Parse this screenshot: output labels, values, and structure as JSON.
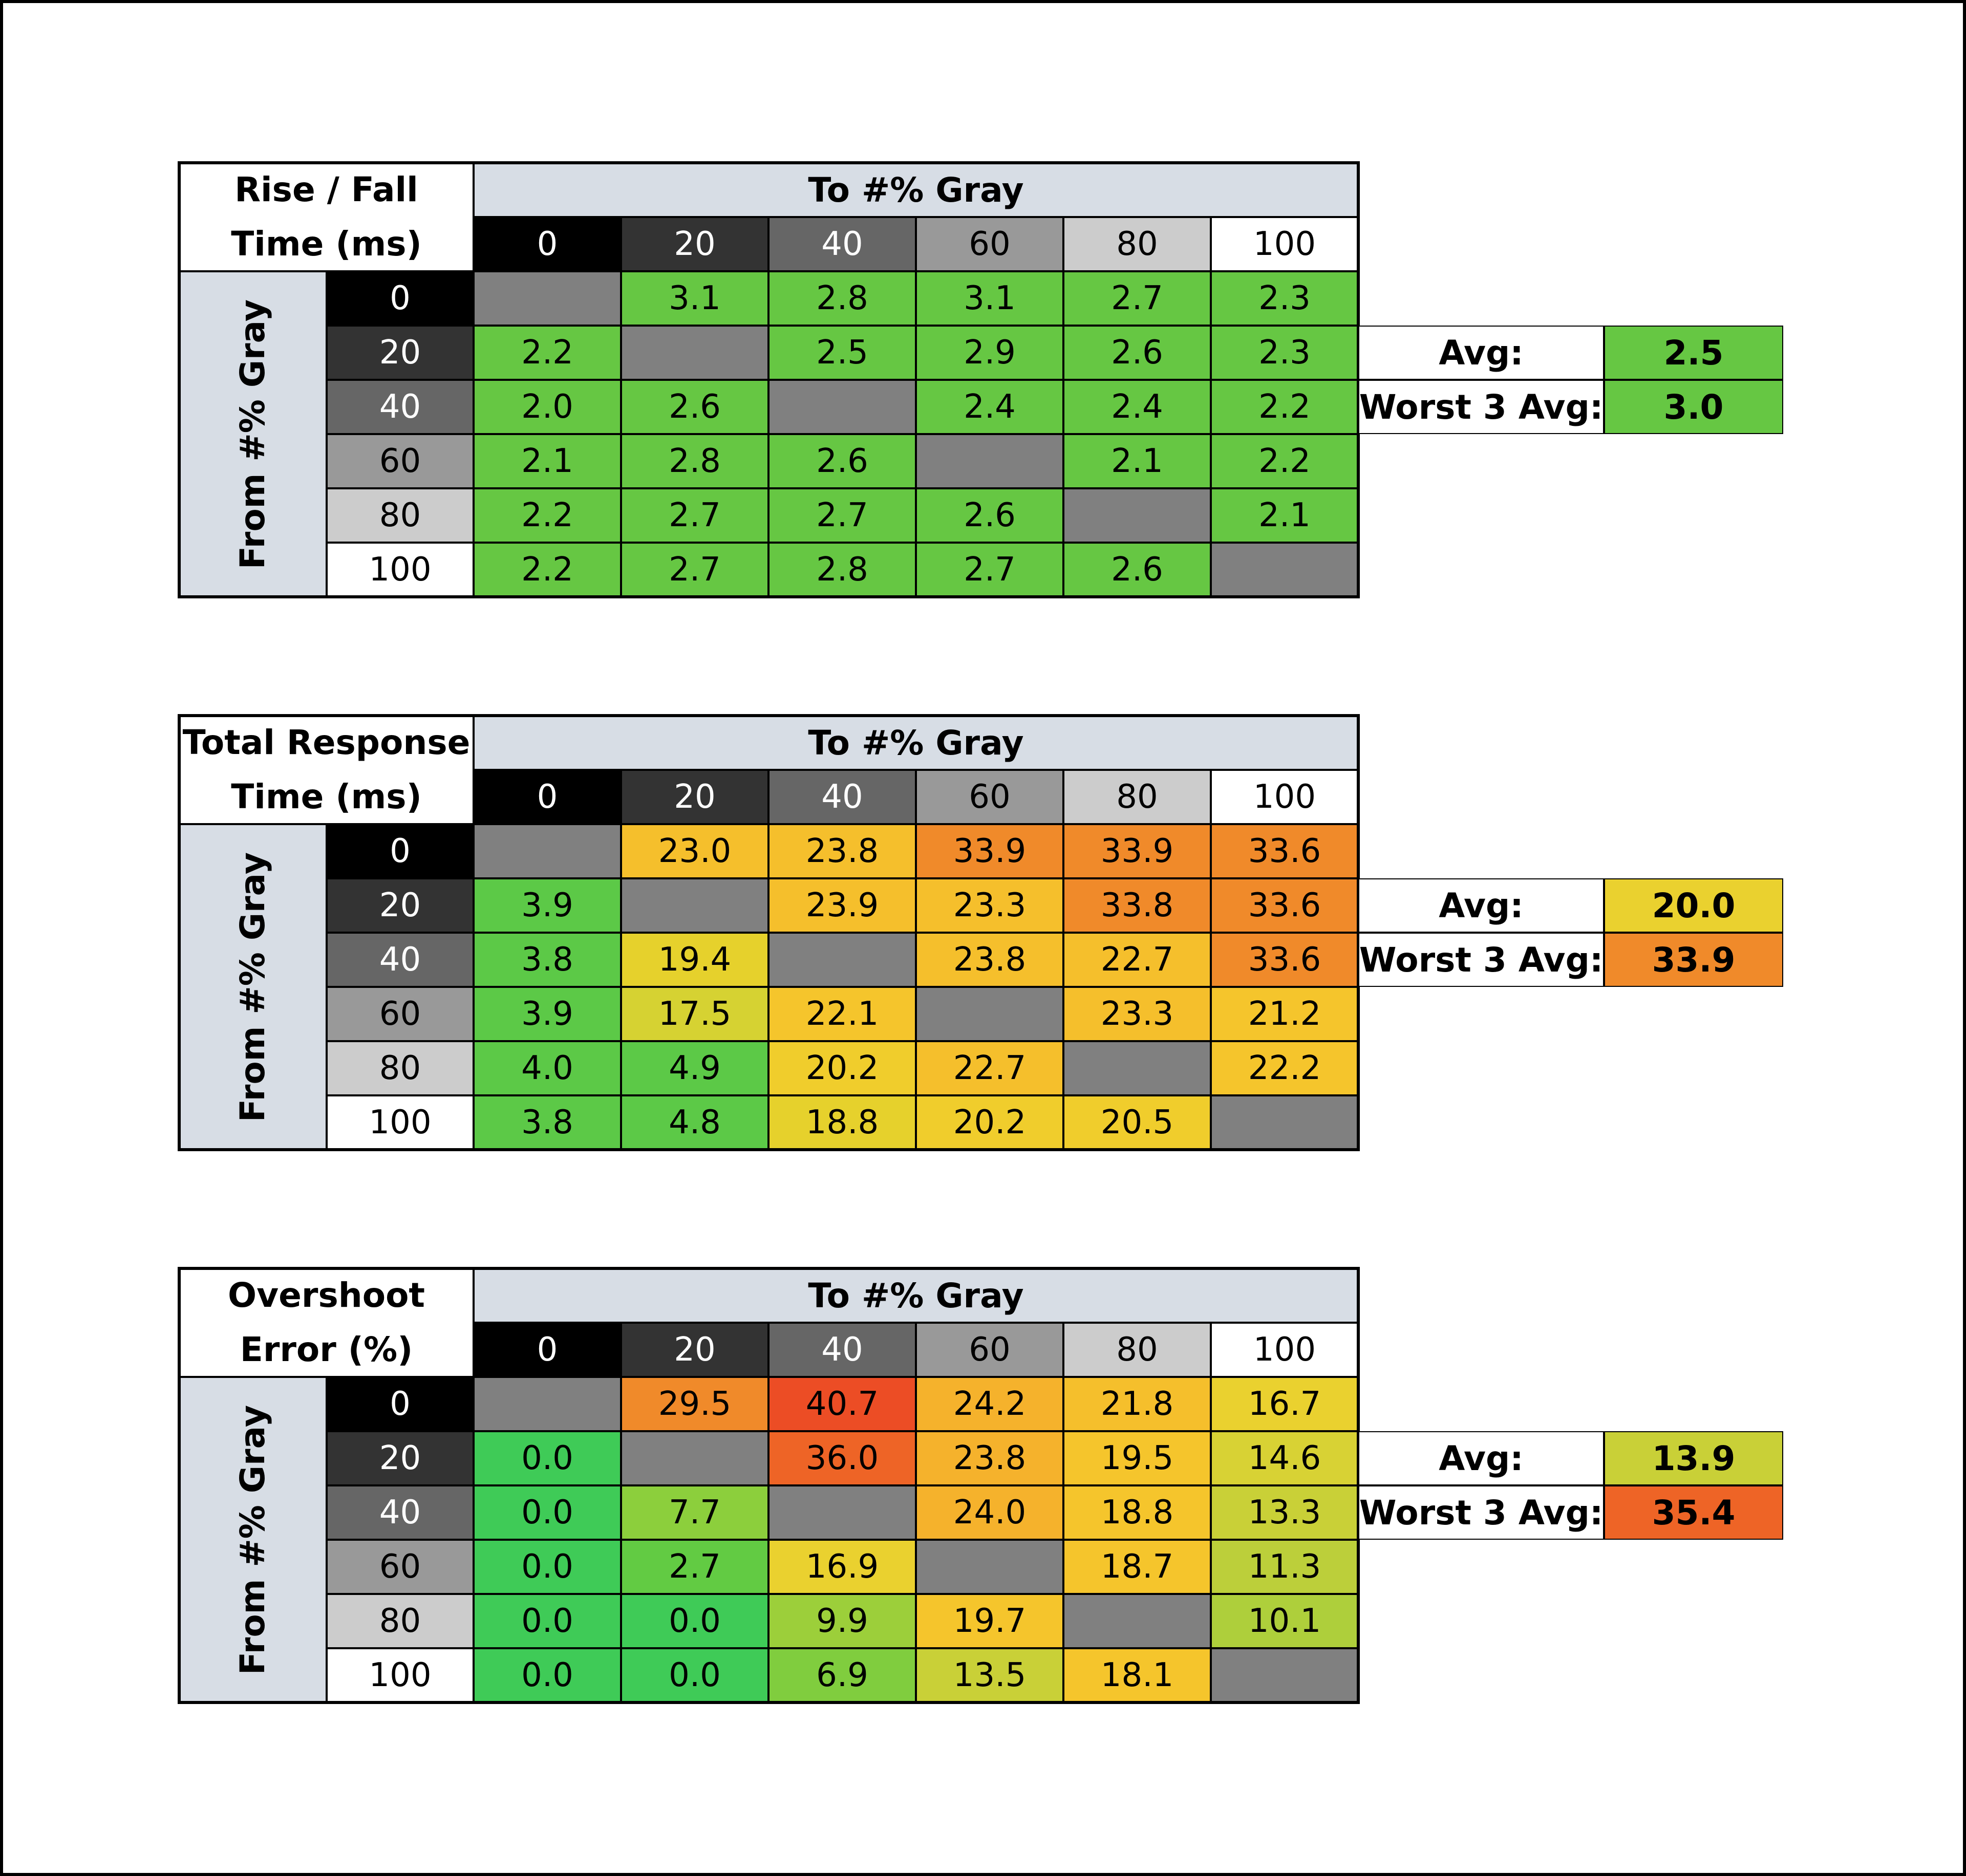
{
  "levels": [
    "0",
    "20",
    "40",
    "60",
    "80",
    "100"
  ],
  "level_colors": [
    "#000000",
    "#333333",
    "#666666",
    "#999999",
    "#cccccc",
    "#ffffff"
  ],
  "level_text_colors": [
    "#ffffff",
    "#ffffff",
    "#ffffff",
    "#000000",
    "#000000",
    "#000000"
  ],
  "na_color": "#808080",
  "col_header": "To #% Gray",
  "row_header": "From #% Gray",
  "avg_label": "Avg:",
  "worst_label": "Worst 3 Avg:",
  "chart_data": [
    {
      "type": "heatmap",
      "title_lines": [
        "Rise / Fall",
        "Time (ms)"
      ],
      "xlabel": "To #% Gray",
      "ylabel": "From #% Gray",
      "x": [
        "0",
        "20",
        "40",
        "60",
        "80",
        "100"
      ],
      "y": [
        "0",
        "20",
        "40",
        "60",
        "80",
        "100"
      ],
      "values": [
        [
          null,
          3.1,
          2.8,
          3.1,
          2.7,
          2.3
        ],
        [
          2.2,
          null,
          2.5,
          2.9,
          2.6,
          2.3
        ],
        [
          2.0,
          2.6,
          null,
          2.4,
          2.4,
          2.2
        ],
        [
          2.1,
          2.8,
          2.6,
          null,
          2.1,
          2.2
        ],
        [
          2.2,
          2.7,
          2.7,
          2.6,
          null,
          2.1
        ],
        [
          2.2,
          2.7,
          2.8,
          2.7,
          2.6,
          null
        ]
      ],
      "colors": [
        [
          null,
          "#66c743",
          "#66c743",
          "#66c743",
          "#66c743",
          "#66c743"
        ],
        [
          "#66c743",
          null,
          "#66c743",
          "#66c743",
          "#66c743",
          "#66c743"
        ],
        [
          "#66c743",
          "#66c743",
          null,
          "#66c743",
          "#66c743",
          "#66c743"
        ],
        [
          "#66c743",
          "#66c743",
          "#66c743",
          null,
          "#66c743",
          "#66c743"
        ],
        [
          "#66c743",
          "#66c743",
          "#66c743",
          "#66c743",
          null,
          "#66c743"
        ],
        [
          "#66c743",
          "#66c743",
          "#66c743",
          "#66c743",
          "#66c743",
          null
        ]
      ],
      "avg": "2.5",
      "avg_color": "#66c743",
      "worst3_avg": "3.0",
      "worst3_color": "#66c743"
    },
    {
      "type": "heatmap",
      "title_lines": [
        "Total Response",
        "Time (ms)"
      ],
      "xlabel": "To #% Gray",
      "ylabel": "From #% Gray",
      "x": [
        "0",
        "20",
        "40",
        "60",
        "80",
        "100"
      ],
      "y": [
        "0",
        "20",
        "40",
        "60",
        "80",
        "100"
      ],
      "values": [
        [
          null,
          23.0,
          23.8,
          33.9,
          33.9,
          33.6
        ],
        [
          3.9,
          null,
          23.9,
          23.3,
          33.8,
          33.6
        ],
        [
          3.8,
          19.4,
          null,
          23.8,
          22.7,
          33.6
        ],
        [
          3.9,
          17.5,
          22.1,
          null,
          23.3,
          21.2
        ],
        [
          4.0,
          4.9,
          20.2,
          22.7,
          null,
          22.2
        ],
        [
          3.8,
          4.8,
          18.8,
          20.2,
          20.5,
          null
        ]
      ],
      "colors": [
        [
          null,
          "#f5bf2c",
          "#f5bf2c",
          "#f08a2a",
          "#f08a2a",
          "#f08a2a"
        ],
        [
          "#5cc947",
          null,
          "#f5bf2c",
          "#f5bf2c",
          "#f08a2a",
          "#f08a2a"
        ],
        [
          "#5cc947",
          "#e6d12c",
          null,
          "#f5bf2c",
          "#f5bf2c",
          "#f08a2a"
        ],
        [
          "#5cc947",
          "#d6d232",
          "#f5c52c",
          null,
          "#f5bf2c",
          "#f5c52c"
        ],
        [
          "#5cc947",
          "#5cc947",
          "#f0cd2c",
          "#f5bf2c",
          null,
          "#f5c52c"
        ],
        [
          "#5cc947",
          "#5cc947",
          "#e6d12c",
          "#f0cd2c",
          "#f0cd2c",
          null
        ]
      ],
      "avg": "20.0",
      "avg_color": "#ead12f",
      "worst3_avg": "33.9",
      "worst3_color": "#f08a2a"
    },
    {
      "type": "heatmap",
      "title_lines": [
        "Overshoot",
        "Error (%)"
      ],
      "xlabel": "To #% Gray",
      "ylabel": "From #% Gray",
      "x": [
        "0",
        "20",
        "40",
        "60",
        "80",
        "100"
      ],
      "y": [
        "0",
        "20",
        "40",
        "60",
        "80",
        "100"
      ],
      "values": [
        [
          null,
          29.5,
          40.7,
          24.2,
          21.8,
          16.7
        ],
        [
          0.0,
          null,
          36.0,
          23.8,
          19.5,
          14.6
        ],
        [
          0.0,
          7.7,
          null,
          24.0,
          18.8,
          13.3
        ],
        [
          0.0,
          2.7,
          16.9,
          null,
          18.7,
          11.3
        ],
        [
          0.0,
          0.0,
          9.9,
          19.7,
          null,
          10.1
        ],
        [
          0.0,
          0.0,
          6.9,
          13.5,
          18.1,
          null
        ]
      ],
      "colors": [
        [
          null,
          "#f08a2a",
          "#ec4d25",
          "#f5b22c",
          "#f5bf2c",
          "#ead12f"
        ],
        [
          "#3fcb57",
          null,
          "#ee6426",
          "#f5b22c",
          "#f5c52c",
          "#d8d234"
        ],
        [
          "#3fcb57",
          "#8ccf3c",
          null,
          "#f5b22c",
          "#f5c52c",
          "#c9d037"
        ],
        [
          "#3fcb57",
          "#62cb43",
          "#ead12f",
          null,
          "#f5c52c",
          "#bccf3a"
        ],
        [
          "#3fcb57",
          "#3fcb57",
          "#9ccf3a",
          "#f5c52c",
          null,
          "#aecf3b"
        ],
        [
          "#3fcb57",
          "#3fcb57",
          "#80cd3e",
          "#c9d037",
          "#f5c52c",
          null
        ]
      ],
      "avg": "13.9",
      "avg_color": "#c9d037",
      "worst3_avg": "35.4",
      "worst3_color": "#ee6426"
    }
  ]
}
